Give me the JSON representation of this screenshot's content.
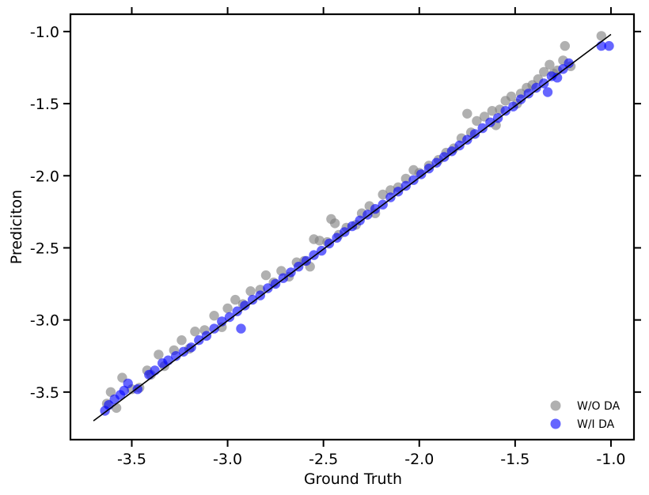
{
  "chart_data": {
    "type": "scatter",
    "title": "",
    "xlabel": "Ground Truth",
    "ylabel": "Prediciton",
    "xlim": [
      -3.82,
      -0.88
    ],
    "ylim": [
      -3.83,
      -0.88
    ],
    "xticks": [
      -3.5,
      -3.0,
      -2.5,
      -2.0,
      -1.5,
      -1.0
    ],
    "xtick_labels": [
      "-3.5",
      "-3.0",
      "-2.5",
      "-2.0",
      "-1.5",
      "-1.0"
    ],
    "yticks": [
      -3.5,
      -3.0,
      -2.5,
      -2.0,
      -1.5,
      -1.0
    ],
    "ytick_labels": [
      "-3.5",
      "-3.0",
      "-2.5",
      "-2.0",
      "-1.5",
      "-1.0"
    ],
    "grid": false,
    "legend_position": "bottom-right",
    "reference_line": {
      "x": [
        -3.7,
        -1.0
      ],
      "y": [
        -3.7,
        -1.02
      ],
      "color": "#000000"
    },
    "series": [
      {
        "name": "W/O DA",
        "color": "#808080",
        "points": [
          [
            -3.63,
            -3.58
          ],
          [
            -3.61,
            -3.5
          ],
          [
            -3.58,
            -3.61
          ],
          [
            -3.55,
            -3.4
          ],
          [
            -3.5,
            -3.48
          ],
          [
            -3.46,
            -3.47
          ],
          [
            -3.42,
            -3.35
          ],
          [
            -3.4,
            -3.38
          ],
          [
            -3.36,
            -3.24
          ],
          [
            -3.33,
            -3.32
          ],
          [
            -3.28,
            -3.21
          ],
          [
            -3.24,
            -3.14
          ],
          [
            -3.2,
            -3.2
          ],
          [
            -3.17,
            -3.08
          ],
          [
            -3.12,
            -3.07
          ],
          [
            -3.07,
            -2.97
          ],
          [
            -3.03,
            -3.05
          ],
          [
            -3.0,
            -2.92
          ],
          [
            -2.96,
            -2.86
          ],
          [
            -2.92,
            -2.89
          ],
          [
            -2.88,
            -2.8
          ],
          [
            -2.83,
            -2.79
          ],
          [
            -2.8,
            -2.69
          ],
          [
            -2.76,
            -2.74
          ],
          [
            -2.72,
            -2.66
          ],
          [
            -2.68,
            -2.7
          ],
          [
            -2.64,
            -2.6
          ],
          [
            -2.6,
            -2.59
          ],
          [
            -2.57,
            -2.63
          ],
          [
            -2.55,
            -2.44
          ],
          [
            -2.52,
            -2.45
          ],
          [
            -2.48,
            -2.46
          ],
          [
            -2.46,
            -2.3
          ],
          [
            -2.44,
            -2.33
          ],
          [
            -2.42,
            -2.41
          ],
          [
            -2.38,
            -2.36
          ],
          [
            -2.33,
            -2.34
          ],
          [
            -2.3,
            -2.26
          ],
          [
            -2.26,
            -2.21
          ],
          [
            -2.23,
            -2.26
          ],
          [
            -2.19,
            -2.13
          ],
          [
            -2.15,
            -2.1
          ],
          [
            -2.11,
            -2.08
          ],
          [
            -2.07,
            -2.02
          ],
          [
            -2.03,
            -1.96
          ],
          [
            -2.0,
            -1.98
          ],
          [
            -1.95,
            -1.93
          ],
          [
            -1.9,
            -1.89
          ],
          [
            -1.86,
            -1.84
          ],
          [
            -1.82,
            -1.81
          ],
          [
            -1.78,
            -1.74
          ],
          [
            -1.75,
            -1.57
          ],
          [
            -1.73,
            -1.7
          ],
          [
            -1.7,
            -1.62
          ],
          [
            -1.66,
            -1.59
          ],
          [
            -1.62,
            -1.55
          ],
          [
            -1.6,
            -1.65
          ],
          [
            -1.58,
            -1.54
          ],
          [
            -1.55,
            -1.48
          ],
          [
            -1.52,
            -1.45
          ],
          [
            -1.49,
            -1.5
          ],
          [
            -1.47,
            -1.43
          ],
          [
            -1.44,
            -1.39
          ],
          [
            -1.41,
            -1.37
          ],
          [
            -1.38,
            -1.33
          ],
          [
            -1.35,
            -1.28
          ],
          [
            -1.32,
            -1.23
          ],
          [
            -1.3,
            -1.29
          ],
          [
            -1.28,
            -1.27
          ],
          [
            -1.25,
            -1.2
          ],
          [
            -1.24,
            -1.1
          ],
          [
            -1.21,
            -1.24
          ],
          [
            -1.05,
            -1.03
          ]
        ]
      },
      {
        "name": "W/I DA",
        "color": "#0000ff",
        "points": [
          [
            -3.64,
            -3.63
          ],
          [
            -3.62,
            -3.59
          ],
          [
            -3.59,
            -3.55
          ],
          [
            -3.56,
            -3.52
          ],
          [
            -3.54,
            -3.49
          ],
          [
            -3.52,
            -3.44
          ],
          [
            -3.47,
            -3.48
          ],
          [
            -3.41,
            -3.38
          ],
          [
            -3.38,
            -3.35
          ],
          [
            -3.34,
            -3.3
          ],
          [
            -3.31,
            -3.28
          ],
          [
            -3.27,
            -3.25
          ],
          [
            -3.23,
            -3.22
          ],
          [
            -3.19,
            -3.19
          ],
          [
            -3.15,
            -3.14
          ],
          [
            -3.11,
            -3.11
          ],
          [
            -3.07,
            -3.06
          ],
          [
            -3.03,
            -3.01
          ],
          [
            -2.99,
            -2.98
          ],
          [
            -2.95,
            -2.94
          ],
          [
            -2.93,
            -3.06
          ],
          [
            -2.91,
            -2.9
          ],
          [
            -2.87,
            -2.86
          ],
          [
            -2.83,
            -2.83
          ],
          [
            -2.79,
            -2.78
          ],
          [
            -2.75,
            -2.75
          ],
          [
            -2.71,
            -2.71
          ],
          [
            -2.67,
            -2.67
          ],
          [
            -2.63,
            -2.63
          ],
          [
            -2.59,
            -2.59
          ],
          [
            -2.55,
            -2.55
          ],
          [
            -2.51,
            -2.52
          ],
          [
            -2.47,
            -2.47
          ],
          [
            -2.43,
            -2.43
          ],
          [
            -2.39,
            -2.39
          ],
          [
            -2.35,
            -2.35
          ],
          [
            -2.31,
            -2.31
          ],
          [
            -2.27,
            -2.27
          ],
          [
            -2.23,
            -2.23
          ],
          [
            -2.19,
            -2.2
          ],
          [
            -2.15,
            -2.15
          ],
          [
            -2.11,
            -2.11
          ],
          [
            -2.07,
            -2.07
          ],
          [
            -2.03,
            -2.03
          ],
          [
            -1.99,
            -1.99
          ],
          [
            -1.95,
            -1.95
          ],
          [
            -1.91,
            -1.91
          ],
          [
            -1.87,
            -1.87
          ],
          [
            -1.83,
            -1.83
          ],
          [
            -1.79,
            -1.79
          ],
          [
            -1.75,
            -1.75
          ],
          [
            -1.71,
            -1.71
          ],
          [
            -1.67,
            -1.67
          ],
          [
            -1.63,
            -1.63
          ],
          [
            -1.59,
            -1.6
          ],
          [
            -1.55,
            -1.55
          ],
          [
            -1.51,
            -1.52
          ],
          [
            -1.47,
            -1.47
          ],
          [
            -1.43,
            -1.43
          ],
          [
            -1.39,
            -1.39
          ],
          [
            -1.35,
            -1.36
          ],
          [
            -1.33,
            -1.42
          ],
          [
            -1.31,
            -1.31
          ],
          [
            -1.28,
            -1.32
          ],
          [
            -1.25,
            -1.26
          ],
          [
            -1.22,
            -1.22
          ],
          [
            -1.05,
            -1.1
          ],
          [
            -1.01,
            -1.1
          ]
        ]
      }
    ]
  }
}
